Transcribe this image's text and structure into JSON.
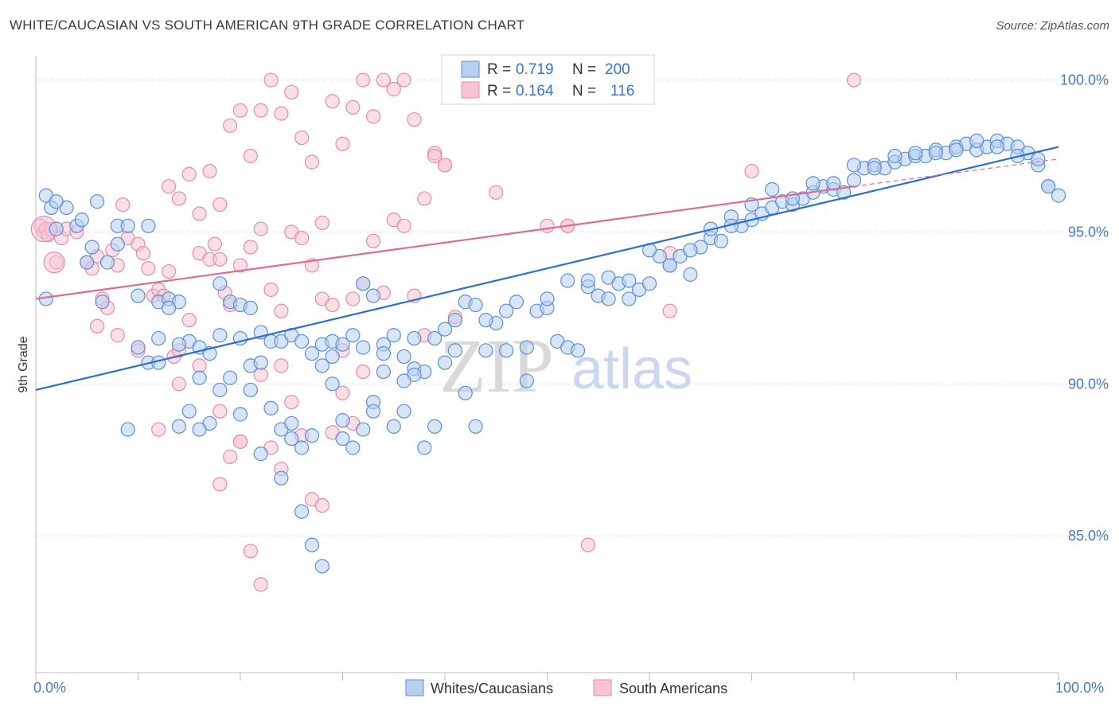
{
  "title": "WHITE/CAUCASIAN VS SOUTH AMERICAN 9TH GRADE CORRELATION CHART",
  "source": "Source: ZipAtlas.com",
  "watermark": {
    "zip": "ZIP",
    "atlas": "atlas"
  },
  "colors": {
    "blue_fill": "#b8d0f0",
    "blue_stroke": "#5b8fd8",
    "blue_line": "#2a6fd0",
    "pink_fill": "#f6c4d4",
    "pink_stroke": "#e88aa8",
    "pink_line": "#e06a92",
    "grid": "#dde3ea",
    "axis": "#bbbbbb",
    "tick_text": "#4a78c8"
  },
  "legend": {
    "rows": [
      {
        "r_label": "R =",
        "r_value": "0.719",
        "n_label": "N =",
        "n_value": "200"
      },
      {
        "r_label": "R =",
        "r_value": "0.164",
        "n_label": "N =",
        "n_value": "116"
      }
    ]
  },
  "bottom_legend": [
    "Whites/Caucasians",
    "South Americans"
  ],
  "chart_data": {
    "type": "scatter",
    "title": "WHITE/CAUCASIAN VS SOUTH AMERICAN 9TH GRADE CORRELATION CHART",
    "xlabel": "",
    "ylabel": "9th Grade",
    "xlim": [
      0,
      100
    ],
    "ylim": [
      80.5,
      100.8
    ],
    "x_tick_labels": [
      "0.0%",
      "100.0%"
    ],
    "y_ticks": [
      85,
      90,
      95,
      100
    ],
    "y_tick_labels": [
      "85.0%",
      "90.0%",
      "95.0%",
      "100.0%"
    ],
    "grid": true,
    "legend_placement": "top-center",
    "series": [
      {
        "name": "Whites/Caucasians",
        "r": 0.719,
        "n": 200,
        "trend": {
          "x": [
            0,
            100
          ],
          "y": [
            89.8,
            97.8
          ]
        },
        "points": [
          [
            1,
            96.2
          ],
          [
            1.5,
            95.8
          ],
          [
            2,
            95.1
          ],
          [
            3,
            95.8
          ],
          [
            4,
            95.2
          ],
          [
            4.5,
            95.4
          ],
          [
            5.5,
            94.5
          ],
          [
            6,
            96
          ],
          [
            7,
            94
          ],
          [
            8,
            95.2
          ],
          [
            9,
            95.2
          ],
          [
            11,
            95.2
          ],
          [
            12,
            92.7
          ],
          [
            13,
            92.8
          ],
          [
            14,
            92.7
          ],
          [
            15,
            91.4
          ],
          [
            16,
            91.2
          ],
          [
            17,
            91
          ],
          [
            18,
            93.3
          ],
          [
            19,
            92.7
          ],
          [
            20,
            92.6
          ],
          [
            21,
            92.5
          ],
          [
            22,
            91.7
          ],
          [
            23,
            91.4
          ],
          [
            24,
            91.4
          ],
          [
            25,
            91.6
          ],
          [
            26,
            91.4
          ],
          [
            27,
            91
          ],
          [
            28,
            91.3
          ],
          [
            29,
            91.4
          ],
          [
            30,
            91.3
          ],
          [
            31,
            91.6
          ],
          [
            32,
            93.3
          ],
          [
            33,
            92.9
          ],
          [
            34,
            91.3
          ],
          [
            35,
            91.6
          ],
          [
            36,
            90.9
          ],
          [
            37,
            90.5
          ],
          [
            38,
            90.4
          ],
          [
            39,
            91.5
          ],
          [
            40,
            91.8
          ],
          [
            41,
            92.1
          ],
          [
            42,
            92.7
          ],
          [
            43,
            92.6
          ],
          [
            44,
            91.1
          ],
          [
            45,
            92
          ],
          [
            46,
            92.4
          ],
          [
            47,
            92.7
          ],
          [
            48,
            91.2
          ],
          [
            49,
            92.4
          ],
          [
            50,
            92.5
          ],
          [
            51,
            91.4
          ],
          [
            52,
            91.2
          ],
          [
            53,
            91.1
          ],
          [
            54,
            93.2
          ],
          [
            55,
            92.9
          ],
          [
            56,
            93.5
          ],
          [
            57,
            93.3
          ],
          [
            58,
            92.8
          ],
          [
            59,
            93.1
          ],
          [
            60,
            93.3
          ],
          [
            61,
            94.2
          ],
          [
            62,
            93.9
          ],
          [
            63,
            94.2
          ],
          [
            64,
            93.6
          ],
          [
            65,
            94.5
          ],
          [
            66,
            94.8
          ],
          [
            67,
            94.7
          ],
          [
            68,
            95.5
          ],
          [
            69,
            95.2
          ],
          [
            70,
            95.4
          ],
          [
            71,
            95.6
          ],
          [
            72,
            95.8
          ],
          [
            73,
            96
          ],
          [
            74,
            95.9
          ],
          [
            75,
            96.1
          ],
          [
            76,
            96.3
          ],
          [
            77,
            96.5
          ],
          [
            78,
            96.4
          ],
          [
            79,
            96.3
          ],
          [
            80,
            96.7
          ],
          [
            81,
            97.1
          ],
          [
            82,
            97.2
          ],
          [
            83,
            97.1
          ],
          [
            84,
            97.3
          ],
          [
            85,
            97.4
          ],
          [
            86,
            97.5
          ],
          [
            87,
            97.5
          ],
          [
            88,
            97.7
          ],
          [
            89,
            97.6
          ],
          [
            90,
            97.8
          ],
          [
            91,
            97.9
          ],
          [
            92,
            97.7
          ],
          [
            93,
            97.8
          ],
          [
            94,
            98
          ],
          [
            95,
            97.9
          ],
          [
            96,
            97.8
          ],
          [
            97,
            97.6
          ],
          [
            98,
            97.2
          ],
          [
            99,
            96.5
          ],
          [
            100,
            96.2
          ],
          [
            1,
            92.8
          ],
          [
            2,
            96
          ],
          [
            5,
            94
          ],
          [
            6.5,
            92.7
          ],
          [
            8,
            94.6
          ],
          [
            10,
            92.9
          ],
          [
            11,
            90.7
          ],
          [
            12,
            91.5
          ],
          [
            13,
            92.5
          ],
          [
            14,
            88.6
          ],
          [
            15,
            89.1
          ],
          [
            16,
            90.2
          ],
          [
            17,
            88.7
          ],
          [
            18,
            91.6
          ],
          [
            19,
            90.2
          ],
          [
            20,
            91.5
          ],
          [
            21,
            90.6
          ],
          [
            22,
            90.7
          ],
          [
            23,
            89.2
          ],
          [
            24,
            88.5
          ],
          [
            25,
            88.7
          ],
          [
            26,
            87.9
          ],
          [
            27,
            88.3
          ],
          [
            28,
            90.6
          ],
          [
            29,
            90
          ],
          [
            30,
            88.8
          ],
          [
            31,
            87.9
          ],
          [
            32,
            88.5
          ],
          [
            33,
            89.4
          ],
          [
            34,
            91
          ],
          [
            35,
            88.6
          ],
          [
            36,
            89.1
          ],
          [
            37,
            90.3
          ],
          [
            38,
            87.9
          ],
          [
            39,
            88.6
          ],
          [
            40,
            90.7
          ],
          [
            41,
            91.1
          ],
          [
            42,
            89.7
          ],
          [
            43,
            88.6
          ],
          [
            9,
            88.5
          ],
          [
            10,
            91.2
          ],
          [
            12,
            90.7
          ],
          [
            14,
            91.3
          ],
          [
            16,
            88.5
          ],
          [
            18,
            89.8
          ],
          [
            20,
            89
          ],
          [
            22,
            87.7
          ],
          [
            24,
            86.9
          ],
          [
            26,
            85.8
          ],
          [
            27,
            84.7
          ],
          [
            28,
            84
          ],
          [
            30,
            88.2
          ],
          [
            32,
            91.2
          ],
          [
            34,
            90.4
          ],
          [
            36,
            90.1
          ],
          [
            44,
            92.1
          ],
          [
            46,
            91.1
          ],
          [
            48,
            90.1
          ],
          [
            50,
            92.8
          ],
          [
            52,
            93.4
          ],
          [
            54,
            93.4
          ],
          [
            56,
            92.8
          ],
          [
            58,
            93.4
          ],
          [
            60,
            94.4
          ],
          [
            62,
            93.9
          ],
          [
            64,
            94.4
          ],
          [
            66,
            95.1
          ],
          [
            68,
            95.2
          ],
          [
            70,
            95.9
          ],
          [
            72,
            96.4
          ],
          [
            74,
            96.1
          ],
          [
            76,
            96.6
          ],
          [
            78,
            96.6
          ],
          [
            80,
            97.2
          ],
          [
            82,
            97.1
          ],
          [
            84,
            97.5
          ],
          [
            86,
            97.6
          ],
          [
            88,
            97.6
          ],
          [
            90,
            97.7
          ],
          [
            92,
            98
          ],
          [
            94,
            97.8
          ],
          [
            96,
            97.5
          ],
          [
            98,
            97.4
          ],
          [
            99,
            96.5
          ],
          [
            21,
            89.8
          ],
          [
            25,
            88.2
          ],
          [
            29,
            90.9
          ],
          [
            33,
            89.1
          ],
          [
            37,
            91.5
          ]
        ]
      },
      {
        "name": "South Americans",
        "r": 0.164,
        "n": 116,
        "trend": {
          "x": [
            0,
            80
          ],
          "y": [
            92.8,
            96.5
          ]
        },
        "trend_dashed": {
          "x": [
            80,
            100
          ],
          "y": [
            96.5,
            97.4
          ]
        },
        "points": [
          [
            0.5,
            95.2
          ],
          [
            0.8,
            95
          ],
          [
            1,
            95.1
          ],
          [
            1.2,
            94.9
          ],
          [
            1.5,
            95.1
          ],
          [
            2,
            94
          ],
          [
            2.5,
            94.8
          ],
          [
            3,
            95.1
          ],
          [
            4,
            95
          ],
          [
            5,
            94
          ],
          [
            5.5,
            93.8
          ],
          [
            6,
            94.2
          ],
          [
            6.5,
            92.8
          ],
          [
            7,
            92.5
          ],
          [
            7.5,
            94.4
          ],
          [
            8,
            93.9
          ],
          [
            8.5,
            95.9
          ],
          [
            9,
            94.8
          ],
          [
            10,
            94.6
          ],
          [
            10.5,
            94.3
          ],
          [
            11,
            93.8
          ],
          [
            11.5,
            92.9
          ],
          [
            12,
            93.1
          ],
          [
            12.5,
            92.9
          ],
          [
            13,
            93.7
          ],
          [
            13.5,
            90.9
          ],
          [
            14,
            91.1
          ],
          [
            15,
            92.1
          ],
          [
            16,
            94.3
          ],
          [
            17,
            94.1
          ],
          [
            17.5,
            94.6
          ],
          [
            18,
            94.1
          ],
          [
            18.5,
            93
          ],
          [
            19,
            92.6
          ],
          [
            20,
            93.9
          ],
          [
            21,
            94.5
          ],
          [
            22,
            95.1
          ],
          [
            23,
            93.1
          ],
          [
            24,
            92.4
          ],
          [
            25,
            95
          ],
          [
            26,
            94.8
          ],
          [
            27,
            93.9
          ],
          [
            28,
            92.8
          ],
          [
            29,
            92.6
          ],
          [
            30,
            91.1
          ],
          [
            31,
            92.8
          ],
          [
            32,
            93.3
          ],
          [
            33,
            94.7
          ],
          [
            34,
            93
          ],
          [
            35,
            95.4
          ],
          [
            36,
            95.2
          ],
          [
            37,
            92.9
          ],
          [
            38,
            91.6
          ],
          [
            39,
            97.6
          ],
          [
            40,
            97.2
          ],
          [
            41,
            92.2
          ],
          [
            45,
            96.3
          ],
          [
            50,
            95.2
          ],
          [
            52,
            95.2
          ],
          [
            62,
            94.3
          ],
          [
            13,
            96.5
          ],
          [
            14,
            96.1
          ],
          [
            15,
            96.9
          ],
          [
            16,
            95.6
          ],
          [
            17,
            97
          ],
          [
            18,
            95.9
          ],
          [
            19,
            98.5
          ],
          [
            20,
            99
          ],
          [
            21,
            97.5
          ],
          [
            22,
            99
          ],
          [
            23,
            100
          ],
          [
            24,
            98.9
          ],
          [
            25,
            99.6
          ],
          [
            26,
            98.1
          ],
          [
            27,
            97.3
          ],
          [
            28,
            95.3
          ],
          [
            29,
            99.3
          ],
          [
            30,
            97.9
          ],
          [
            31,
            99.1
          ],
          [
            32,
            100
          ],
          [
            33,
            98.8
          ],
          [
            34,
            100
          ],
          [
            35,
            99.7
          ],
          [
            36,
            100
          ],
          [
            37,
            98.7
          ],
          [
            38,
            96.1
          ],
          [
            39,
            97.5
          ],
          [
            40,
            97.2
          ],
          [
            41,
            100
          ],
          [
            42,
            100
          ],
          [
            52,
            95.2
          ],
          [
            62,
            92.4
          ],
          [
            70,
            97
          ],
          [
            80,
            100
          ],
          [
            54,
            84.7
          ],
          [
            18,
            86.7
          ],
          [
            19,
            87.6
          ],
          [
            20,
            88.1
          ],
          [
            21,
            84.5
          ],
          [
            22,
            83.4
          ],
          [
            23,
            87.9
          ],
          [
            24,
            87.2
          ],
          [
            25,
            89.4
          ],
          [
            26,
            88.3
          ],
          [
            27,
            86.2
          ],
          [
            28,
            86
          ],
          [
            29,
            88.4
          ],
          [
            30,
            89.7
          ],
          [
            31,
            88.7
          ],
          [
            32,
            90.4
          ],
          [
            6,
            91.9
          ],
          [
            8,
            91.6
          ],
          [
            10,
            91.1
          ],
          [
            12,
            88.5
          ],
          [
            14,
            90
          ],
          [
            16,
            90.6
          ],
          [
            18,
            89.1
          ],
          [
            20,
            88.1
          ],
          [
            22,
            90.3
          ],
          [
            24,
            90.6
          ]
        ]
      }
    ]
  }
}
